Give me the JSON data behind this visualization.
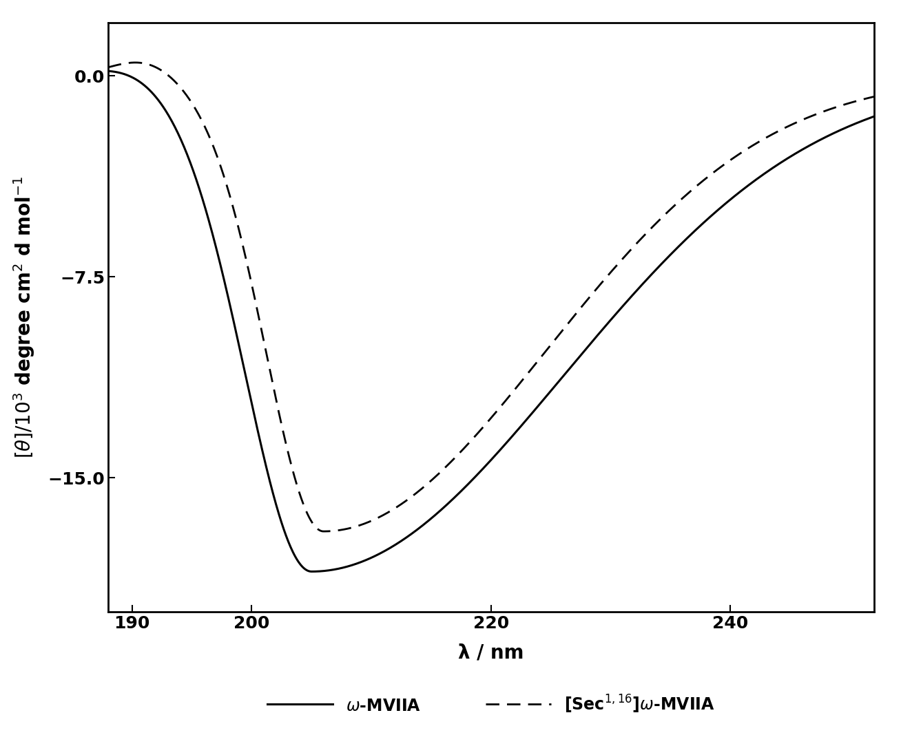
{
  "xlabel": "λ / nm",
  "xlim": [
    188,
    252
  ],
  "ylim": [
    -20,
    2
  ],
  "xticks": [
    190,
    200,
    220,
    240
  ],
  "yticks": [
    0,
    -7.5,
    -15
  ],
  "background_color": "#ffffff",
  "line_color": "#000000",
  "label_fontsize": 20,
  "tick_fontsize": 18,
  "legend_fontsize": 17
}
